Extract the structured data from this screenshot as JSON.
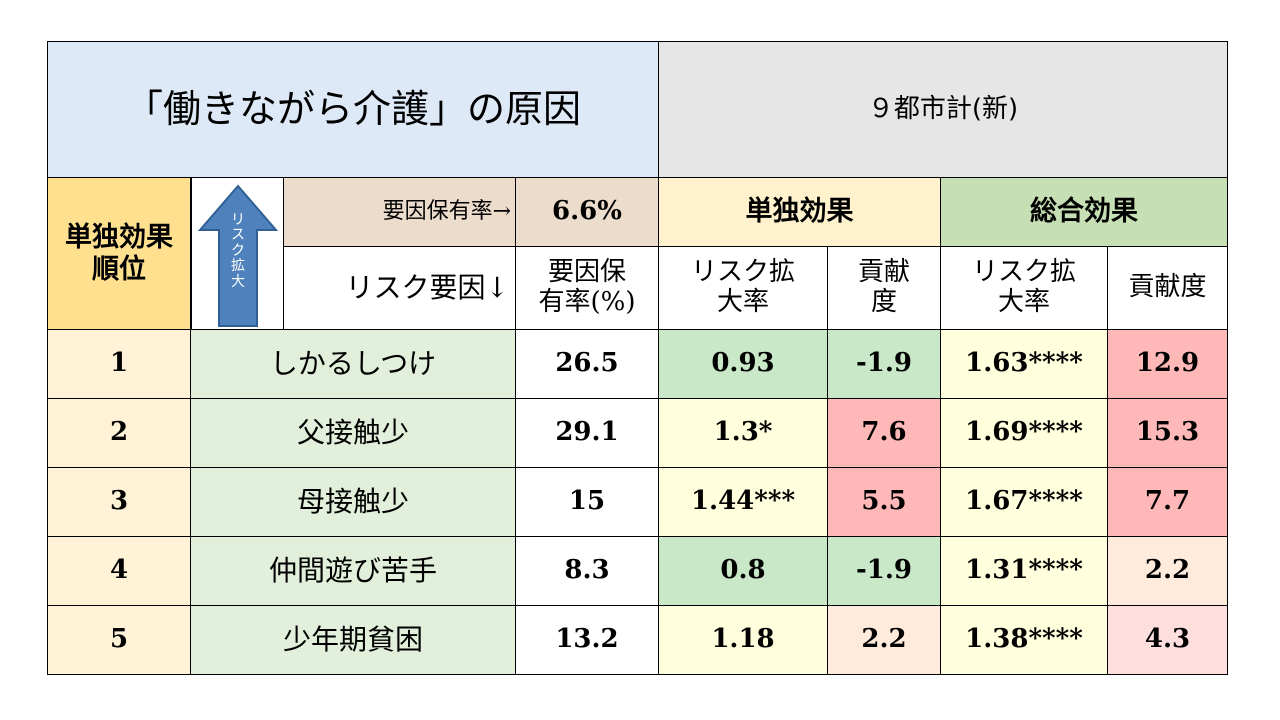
{
  "header": {
    "title": "「働きながら介護」の原因",
    "region": "９都市計(新)"
  },
  "labels": {
    "rank_head_1": "単独効果",
    "rank_head_2": "順位",
    "arrow_text": [
      "リ",
      "ス",
      "ク",
      "拡",
      "大"
    ],
    "factor_rate_label": "要因保有率→",
    "factor_rate_value": "6.6%",
    "single_effect": "単独効果",
    "total_effect": "総合効果",
    "risk_factor_label": "リスク要因↓",
    "factor_rate_pct_1": "要因保",
    "factor_rate_pct_2": "有率(%)",
    "risk_ratio_1": "リスク拡",
    "risk_ratio_2": "大率",
    "contrib_1": "貢献",
    "contrib_2": "度",
    "total_risk_ratio_1": "リスク拡",
    "total_risk_ratio_2": "大率",
    "total_contrib": "貢献度"
  },
  "rows": [
    {
      "rank": "1",
      "factor": "しかるしつけ",
      "rate": "26.5",
      "single_rr": "0.93",
      "single_contrib": "-1.9",
      "total_rr": "1.63****",
      "total_contrib": "12.9"
    },
    {
      "rank": "2",
      "factor": "父接触少",
      "rate": "29.1",
      "single_rr": "1.3*",
      "single_contrib": "7.6",
      "total_rr": "1.69****",
      "total_contrib": "15.3"
    },
    {
      "rank": "3",
      "factor": "母接触少",
      "rate": "15",
      "single_rr": "1.44***",
      "single_contrib": "5.5",
      "total_rr": "1.67****",
      "total_contrib": "7.7"
    },
    {
      "rank": "4",
      "factor": "仲間遊び苦手",
      "rate": "8.3",
      "single_rr": "0.8",
      "single_contrib": "-1.9",
      "total_rr": "1.31****",
      "total_contrib": "2.2"
    },
    {
      "rank": "5",
      "factor": "少年期貧困",
      "rate": "13.2",
      "single_rr": "1.18",
      "single_contrib": "2.2",
      "total_rr": "1.38****",
      "total_contrib": "4.3"
    }
  ],
  "colors": {
    "title_bg": "#dde9f6",
    "region_bg": "#e6e6e6",
    "rank_head_bg": "#ffe08f",
    "factor_rate_bg": "#ecdccc",
    "single_head_bg": "#fff2cc",
    "total_head_bg": "#c6dfb4",
    "arrow_fill": "#4f81bd"
  }
}
